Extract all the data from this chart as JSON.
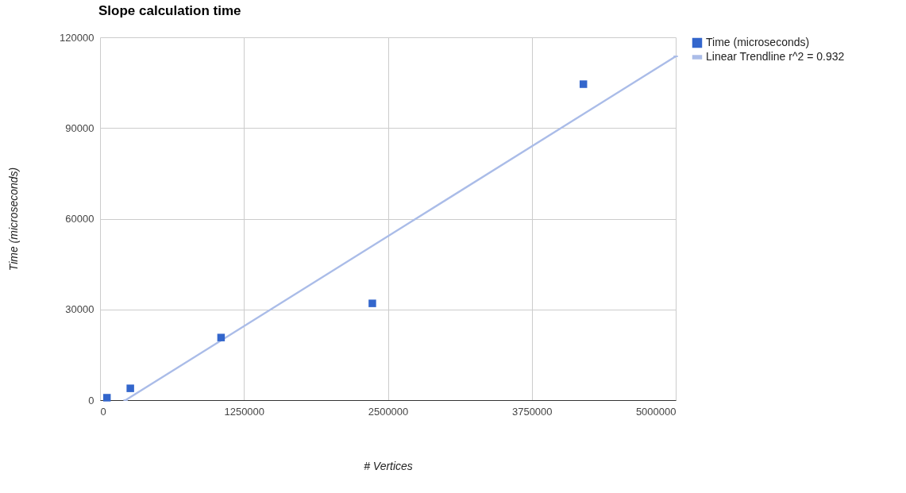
{
  "chart_data": {
    "type": "scatter",
    "title": "Slope calculation time",
    "xlabel": "# Vertices",
    "ylabel": "Time (microseconds)",
    "xlim": [
      0,
      5000000
    ],
    "xticks": [
      0,
      1250000,
      2500000,
      3750000,
      5000000
    ],
    "ylim": [
      0,
      120000
    ],
    "yticks": [
      0,
      30000,
      60000,
      90000,
      120000
    ],
    "grid": true,
    "legend": "top right",
    "marker": "square",
    "series": [
      {
        "name": "Time (microseconds)",
        "type": "scatter",
        "color": "#3366cc",
        "x": [
          60000,
          263000,
          1051000,
          2365000,
          4198000
        ],
        "values": [
          800,
          3900,
          20700,
          32000,
          104500
        ]
      },
      {
        "name": "Linear Trendline r^2 = 0.932",
        "type": "line",
        "color": "#aabce8",
        "x": [
          222000,
          5000000
        ],
        "values": [
          0,
          113700
        ]
      }
    ]
  }
}
